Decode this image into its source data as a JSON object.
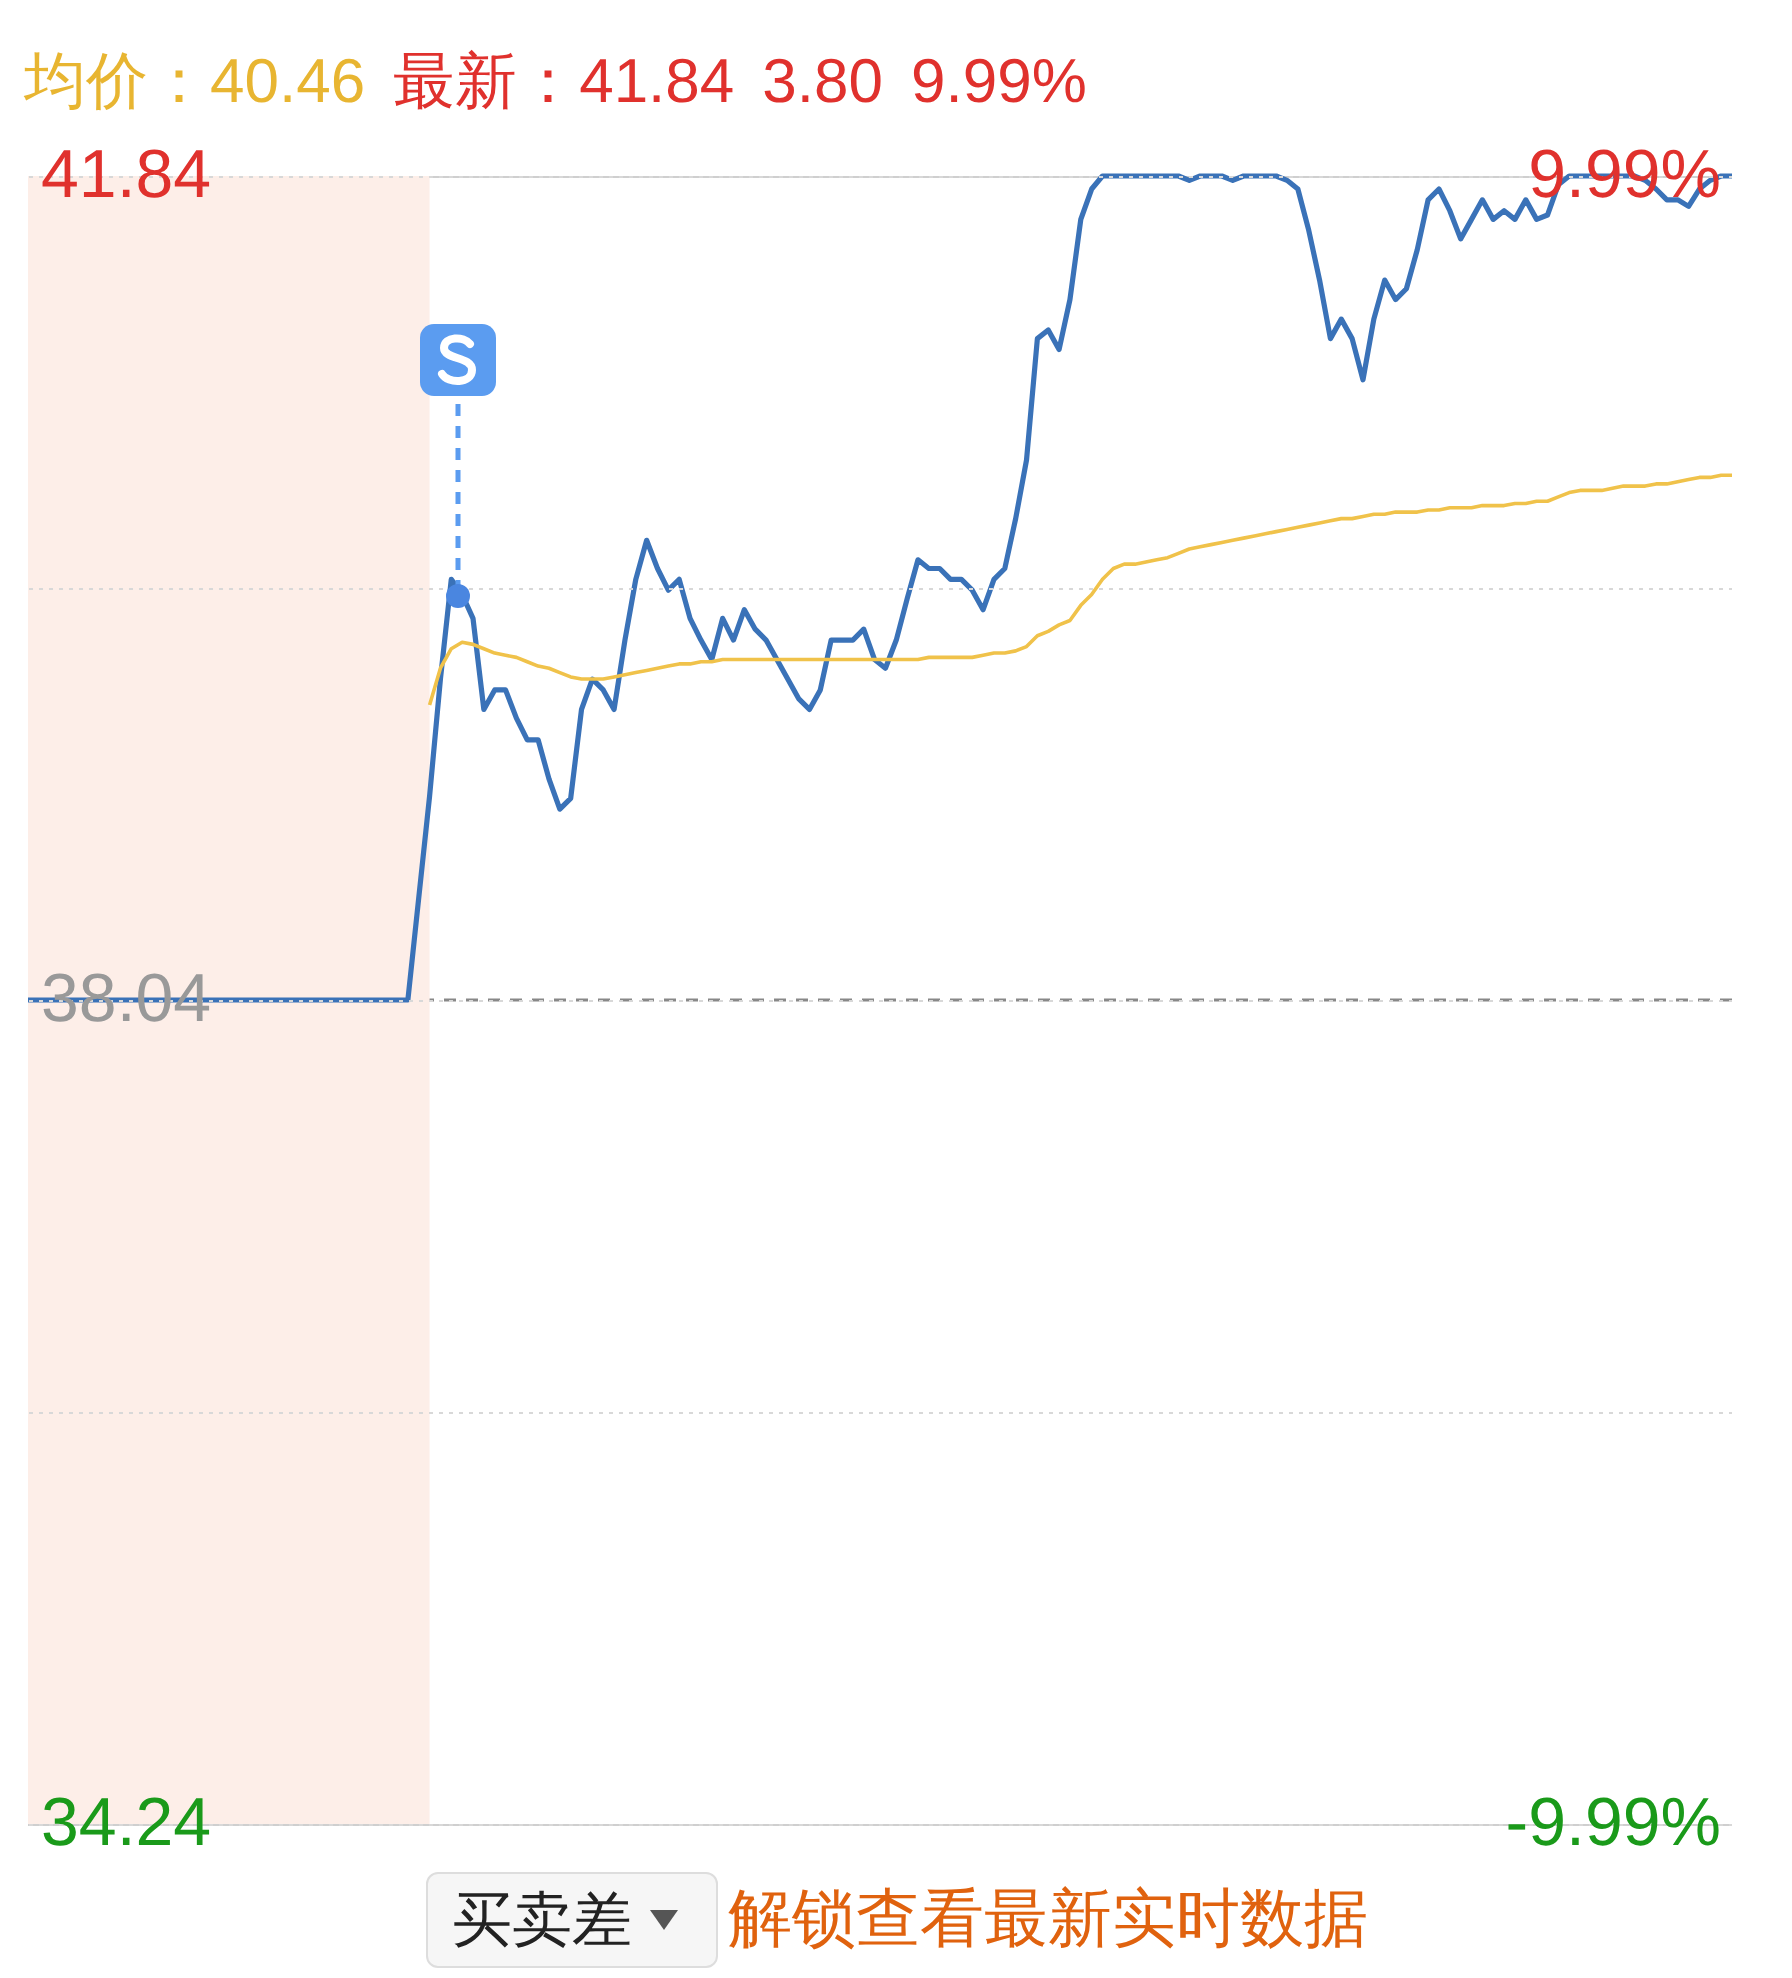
{
  "chart_data": {
    "type": "line",
    "categories": [
      null,
      null,
      null,
      null,
      null,
      null,
      null,
      null,
      null,
      null,
      null,
      null,
      null,
      null,
      null,
      null,
      null,
      null,
      null,
      null,
      null,
      null,
      null,
      null,
      null,
      null,
      null,
      null,
      null,
      null,
      null,
      null,
      null,
      null,
      null,
      null,
      null,
      null,
      null,
      null,
      null,
      null,
      null,
      null,
      null,
      null,
      null,
      null,
      null,
      null,
      null,
      null,
      null,
      null,
      null,
      null,
      null,
      null,
      null,
      null,
      null,
      null,
      null,
      null,
      null,
      null,
      null,
      null,
      null,
      null,
      null,
      null,
      null,
      null,
      null,
      null,
      null,
      null,
      null,
      null,
      null,
      null,
      null,
      null,
      null,
      null,
      null,
      null,
      null,
      null,
      null,
      null,
      null,
      null,
      null,
      null,
      null,
      null,
      null,
      null,
      null,
      null,
      null,
      null,
      null,
      null,
      null,
      null,
      null,
      null,
      null,
      null,
      null,
      null,
      null,
      null,
      null,
      null,
      null,
      null,
      null,
      null,
      null,
      null,
      null,
      null,
      null,
      null,
      null,
      null,
      null,
      null,
      null,
      null,
      null,
      null,
      null,
      null,
      null,
      null,
      null,
      null,
      null,
      null,
      null,
      null,
      null,
      null,
      null,
      null,
      null,
      null,
      null,
      null,
      null,
      null,
      null,
      null
    ],
    "series": [
      {
        "color": "#3a72b8",
        "values": [
          38.04,
          38.04,
          38.04,
          38.04,
          38.04,
          38.04,
          38.04,
          38.04,
          38.04,
          38.04,
          38.04,
          38.04,
          38.04,
          38.04,
          38.04,
          38.04,
          38.04,
          38.04,
          38.04,
          38.04,
          38.04,
          38.04,
          38.04,
          38.04,
          38.04,
          38.04,
          38.04,
          38.04,
          38.04,
          38.04,
          38.04,
          38.04,
          38.04,
          38.04,
          38.04,
          38.04,
          38.51,
          38.98,
          39.52,
          39.98,
          39.91,
          39.8,
          39.38,
          39.47,
          39.47,
          39.34,
          39.24,
          39.24,
          39.06,
          38.92,
          38.97,
          39.38,
          39.52,
          39.47,
          39.38,
          39.7,
          39.98,
          40.16,
          40.03,
          39.93,
          39.98,
          39.8,
          39.7,
          39.61,
          39.8,
          39.7,
          39.84,
          39.75,
          39.7,
          39.61,
          39.52,
          39.43,
          39.38,
          39.47,
          39.7,
          39.7,
          39.7,
          39.75,
          39.61,
          39.57,
          39.7,
          39.89,
          40.07,
          40.03,
          40.03,
          39.98,
          39.98,
          39.93,
          39.84,
          39.98,
          40.03,
          40.26,
          40.53,
          41.09,
          41.13,
          41.04,
          41.27,
          41.64,
          41.78,
          41.84,
          41.84,
          41.84,
          41.84,
          41.84,
          41.84,
          41.84,
          41.84,
          41.82,
          41.84,
          41.84,
          41.84,
          41.82,
          41.84,
          41.84,
          41.84,
          41.84,
          41.82,
          41.78,
          41.59,
          41.36,
          41.09,
          41.18,
          41.09,
          40.9,
          41.18,
          41.36,
          41.27,
          41.32,
          41.5,
          41.73,
          41.78,
          41.68,
          41.55,
          41.64,
          41.73,
          41.64,
          41.68,
          41.64,
          41.73,
          41.64,
          41.66,
          41.8,
          41.84,
          41.84,
          41.84,
          41.84,
          41.84,
          41.84,
          41.84,
          41.82,
          41.78,
          41.73,
          41.73,
          41.7,
          41.78,
          41.82,
          41.84,
          41.84
        ]
      },
      {
        "color": "#f0c24a",
        "values": [
          null,
          null,
          null,
          null,
          null,
          null,
          null,
          null,
          null,
          null,
          null,
          null,
          null,
          null,
          null,
          null,
          null,
          null,
          null,
          null,
          null,
          null,
          null,
          null,
          null,
          null,
          null,
          null,
          null,
          null,
          null,
          null,
          null,
          null,
          null,
          null,
          null,
          39.4,
          39.57,
          39.66,
          39.69,
          39.68,
          39.66,
          39.64,
          39.63,
          39.62,
          39.6,
          39.58,
          39.57,
          39.55,
          39.53,
          39.52,
          39.52,
          39.52,
          39.53,
          39.54,
          39.55,
          39.56,
          39.57,
          39.58,
          39.59,
          39.59,
          39.6,
          39.6,
          39.61,
          39.61,
          39.61,
          39.61,
          39.61,
          39.61,
          39.61,
          39.61,
          39.61,
          39.61,
          39.61,
          39.61,
          39.61,
          39.61,
          39.61,
          39.61,
          39.61,
          39.61,
          39.61,
          39.62,
          39.62,
          39.62,
          39.62,
          39.62,
          39.63,
          39.64,
          39.64,
          39.65,
          39.67,
          39.72,
          39.74,
          39.77,
          39.79,
          39.86,
          39.91,
          39.98,
          40.03,
          40.05,
          40.05,
          40.06,
          40.07,
          40.08,
          40.1,
          40.12,
          40.13,
          40.14,
          40.15,
          40.16,
          40.17,
          40.18,
          40.19,
          40.2,
          40.21,
          40.22,
          40.23,
          40.24,
          40.25,
          40.26,
          40.26,
          40.27,
          40.28,
          40.28,
          40.29,
          40.29,
          40.29,
          40.3,
          40.3,
          40.31,
          40.31,
          40.31,
          40.32,
          40.32,
          40.32,
          40.33,
          40.33,
          40.34,
          40.34,
          40.36,
          40.38,
          40.39,
          40.39,
          40.39,
          40.4,
          40.41,
          40.41,
          40.41,
          40.42,
          40.42,
          40.43,
          40.44,
          40.45,
          40.45,
          40.46,
          40.46
        ]
      }
    ],
    "ylim": [
      34.24,
      41.84
    ],
    "yticks": [
      41.84,
      {
        "value": 39.94,
        "label": null
      },
      38.04,
      {
        "value": 36.14,
        "label": null
      },
      34.24
    ],
    "y2lim": [
      -9.99,
      9.99
    ],
    "y2ticks": [
      {
        "value": 9.99,
        "label": "9.99%"
      },
      {
        "value": -9.99,
        "label": "-9.99%"
      }
    ],
    "grid": "y",
    "ref_lines": [
      {
        "axis": "y",
        "value": 38.04,
        "color": "#888888",
        "line_style": "dashed"
      }
    ],
    "annotations": [
      "均价：40.46",
      "最新：41.84",
      "3.80",
      "9.99%",
      "买卖差",
      "解锁查看最新实时数据"
    ]
  }
}
